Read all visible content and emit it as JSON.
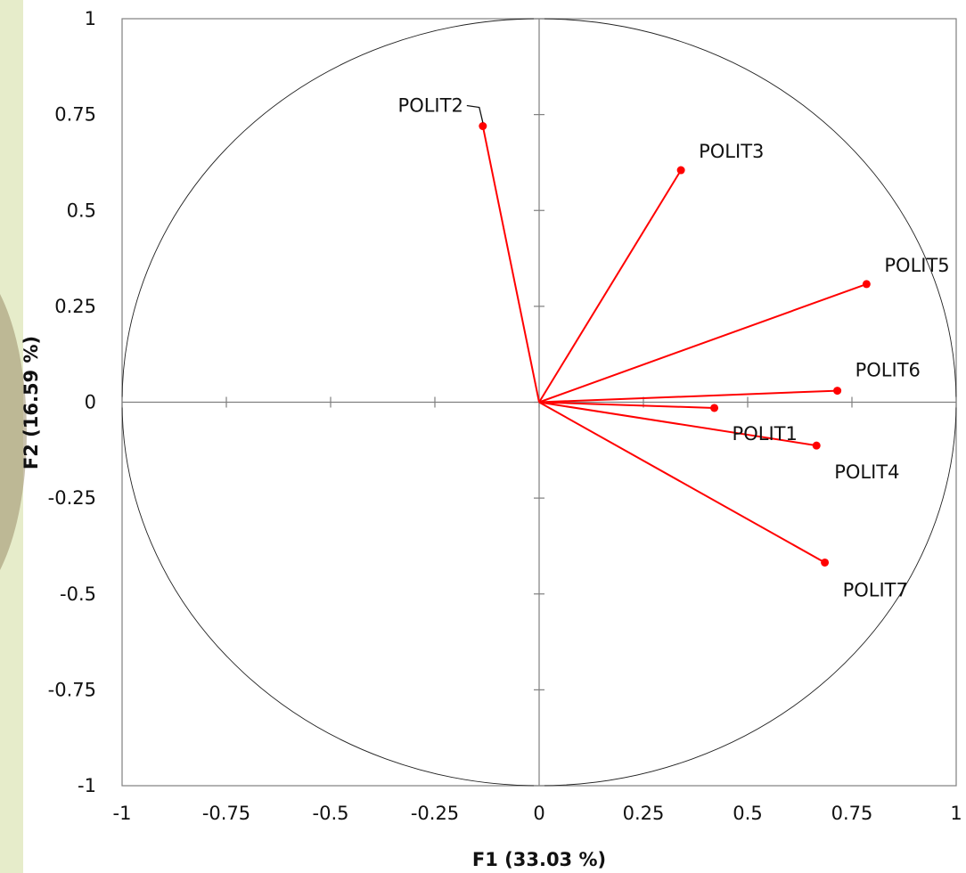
{
  "chart_data": {
    "type": "scatter",
    "subtype": "correlation-circle",
    "xlabel": "F1 (33.03 %)",
    "ylabel": "F2 (16.59 %)",
    "xlim": [
      -1,
      1
    ],
    "ylim": [
      -1,
      1
    ],
    "xticks": [
      "-1",
      "-0.75",
      "-0.5",
      "-0.25",
      "0",
      "0.25",
      "0.5",
      "0.75",
      "1"
    ],
    "yticks": [
      "-1",
      "-0.75",
      "-0.5",
      "-0.25",
      "0",
      "0.25",
      "0.5",
      "0.75",
      "1"
    ],
    "grid": false,
    "unit_circle": true,
    "vector_color": "#ff0000",
    "variables": [
      {
        "name": "POLIT1",
        "x": 0.42,
        "y": -0.015
      },
      {
        "name": "POLIT2",
        "x": -0.135,
        "y": 0.72
      },
      {
        "name": "POLIT3",
        "x": 0.34,
        "y": 0.605
      },
      {
        "name": "POLIT4",
        "x": 0.665,
        "y": -0.113
      },
      {
        "name": "POLIT5",
        "x": 0.785,
        "y": 0.308
      },
      {
        "name": "POLIT6",
        "x": 0.715,
        "y": 0.03
      },
      {
        "name": "POLIT7",
        "x": 0.685,
        "y": -0.418
      }
    ]
  }
}
